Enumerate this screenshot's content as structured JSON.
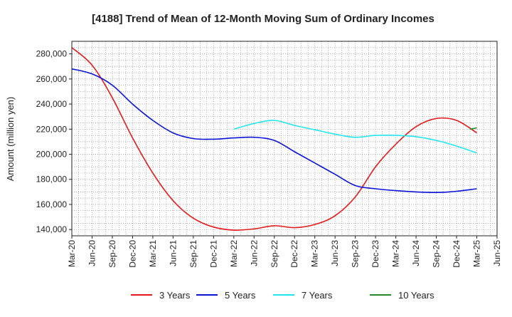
{
  "chart_data": {
    "type": "line",
    "title": "[4188]  Trend of Mean of 12-Month Moving Sum of Ordinary Incomes",
    "xlabel": "",
    "ylabel": "Amount (million yen)",
    "ylim": [
      135000,
      290000
    ],
    "yticks": [
      140000,
      160000,
      180000,
      200000,
      220000,
      240000,
      260000,
      280000
    ],
    "ytick_labels": [
      "140,000",
      "160,000",
      "180,000",
      "200,000",
      "220,000",
      "240,000",
      "260,000",
      "280,000"
    ],
    "x_start": "Mar-20",
    "x_end": "Jun-25",
    "xtick_labels": [
      "Mar-20",
      "Jun-20",
      "Sep-20",
      "Dec-20",
      "Mar-21",
      "Jun-21",
      "Sep-21",
      "Dec-21",
      "Mar-22",
      "Jun-22",
      "Sep-22",
      "Dec-22",
      "Mar-23",
      "Jun-23",
      "Sep-23",
      "Dec-23",
      "Mar-24",
      "Jun-24",
      "Sep-24",
      "Dec-24",
      "Mar-25",
      "Jun-25"
    ],
    "grid": true,
    "legend_position": "bottom",
    "series": [
      {
        "name": "3 Years",
        "color": "#e31a1c",
        "points": [
          [
            "Mar-20",
            285000
          ],
          [
            "Jun-20",
            271000
          ],
          [
            "Sep-20",
            245000
          ],
          [
            "Dec-20",
            213000
          ],
          [
            "Mar-21",
            185000
          ],
          [
            "Jun-21",
            163000
          ],
          [
            "Sep-21",
            149000
          ],
          [
            "Dec-21",
            142000
          ],
          [
            "Mar-22",
            139500
          ],
          [
            "Jun-22",
            140500
          ],
          [
            "Sep-22",
            143000
          ],
          [
            "Dec-22",
            141500
          ],
          [
            "Mar-23",
            144000
          ],
          [
            "Jun-23",
            151000
          ],
          [
            "Sep-23",
            166000
          ],
          [
            "Dec-23",
            190000
          ],
          [
            "Mar-24",
            208000
          ],
          [
            "Jun-24",
            222000
          ],
          [
            "Sep-24",
            228500
          ],
          [
            "Dec-24",
            227000
          ],
          [
            "Mar-25",
            217000
          ]
        ]
      },
      {
        "name": "5 Years",
        "color": "#0a14d4",
        "points": [
          [
            "Mar-20",
            268000
          ],
          [
            "Jun-20",
            264000
          ],
          [
            "Sep-20",
            255000
          ],
          [
            "Dec-20",
            240000
          ],
          [
            "Mar-21",
            227000
          ],
          [
            "Jun-21",
            217000
          ],
          [
            "Sep-21",
            212500
          ],
          [
            "Dec-21",
            212000
          ],
          [
            "Mar-22",
            213000
          ],
          [
            "Jun-22",
            213500
          ],
          [
            "Sep-22",
            211000
          ],
          [
            "Dec-22",
            202000
          ],
          [
            "Mar-23",
            193000
          ],
          [
            "Jun-23",
            184000
          ],
          [
            "Sep-23",
            175000
          ],
          [
            "Dec-23",
            172500
          ],
          [
            "Mar-24",
            171000
          ],
          [
            "Jun-24",
            170000
          ],
          [
            "Sep-24",
            169500
          ],
          [
            "Dec-24",
            170500
          ],
          [
            "Mar-25",
            172500
          ]
        ]
      },
      {
        "name": "7 Years",
        "color": "#22e5ef",
        "points": [
          [
            "Mar-22",
            220000
          ],
          [
            "Jun-22",
            224500
          ],
          [
            "Sep-22",
            227000
          ],
          [
            "Dec-22",
            223000
          ],
          [
            "Mar-23",
            219500
          ],
          [
            "Jun-23",
            216000
          ],
          [
            "Sep-23",
            213500
          ],
          [
            "Dec-23",
            215000
          ],
          [
            "Mar-24",
            215000
          ],
          [
            "Jun-24",
            214000
          ],
          [
            "Sep-24",
            211000
          ],
          [
            "Dec-24",
            206500
          ],
          [
            "Mar-25",
            201000
          ]
        ]
      },
      {
        "name": "10 Years",
        "color": "#228b22",
        "points": [
          [
            "Feb-25",
            220000
          ],
          [
            "Mar-25",
            221000
          ]
        ]
      }
    ]
  }
}
